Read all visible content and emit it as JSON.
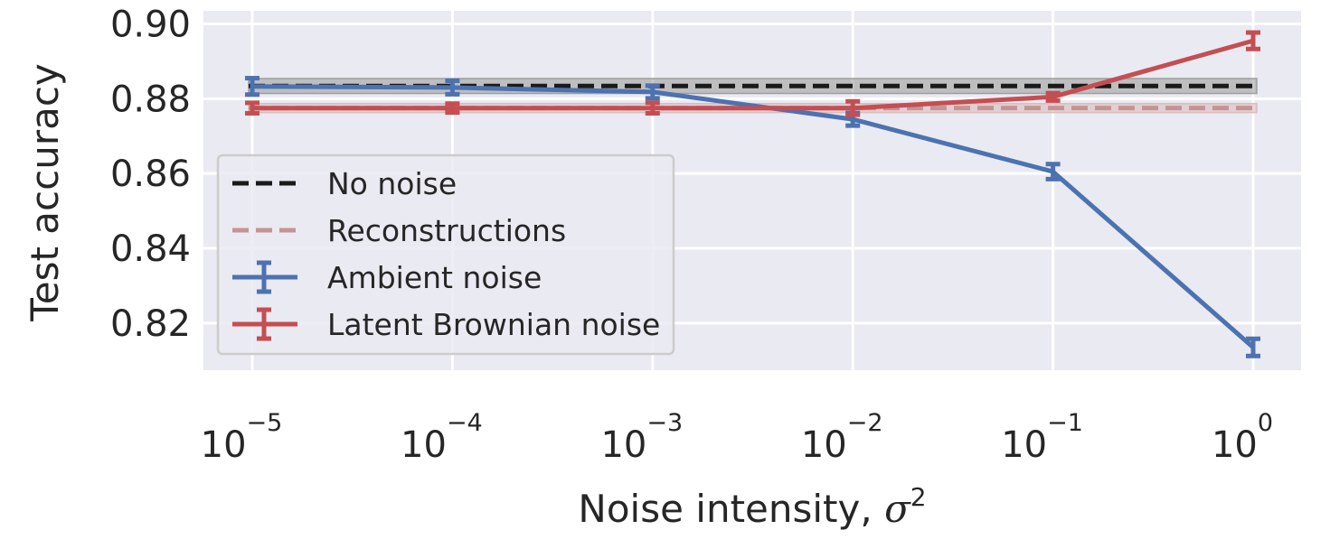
{
  "chart_data": {
    "type": "line",
    "xscale": "log",
    "x": [
      1e-05,
      0.0001,
      0.001,
      0.01,
      0.1,
      1
    ],
    "x_tick_labels": [
      {
        "base": "10",
        "exp": "−5"
      },
      {
        "base": "10",
        "exp": "−4"
      },
      {
        "base": "10",
        "exp": "−3"
      },
      {
        "base": "10",
        "exp": "−2"
      },
      {
        "base": "10",
        "exp": "−1"
      },
      {
        "base": "10",
        "exp": "0"
      }
    ],
    "ylim": [
      0.8074,
      0.9035
    ],
    "y_ticks": [
      0.82,
      0.84,
      0.86,
      0.88,
      0.9
    ],
    "y_tick_labels": [
      "0.82",
      "0.84",
      "0.86",
      "0.88",
      "0.90"
    ],
    "xlabel": {
      "text": "Noise intensity, ",
      "symbol": "σ",
      "sup": "2"
    },
    "ylabel": "Test accuracy",
    "grid": true,
    "legend_position": "center-left",
    "series": [
      {
        "name": "No noise",
        "kind": "hline",
        "value": 0.8834,
        "band": [
          0.8814,
          0.8854
        ],
        "color": "#1a1a1a",
        "band_color": "#999999",
        "dashed": true
      },
      {
        "name": "Reconstructions",
        "kind": "hline",
        "value": 0.8775,
        "band": [
          0.8763,
          0.8787
        ],
        "color": "#c49494",
        "band_color": "#d9b8b8",
        "dashed": true
      },
      {
        "name": "Ambient noise",
        "kind": "errorbar",
        "color": "#4c72b0",
        "values": [
          0.8833,
          0.883,
          0.8818,
          0.8745,
          0.8605,
          0.8135
        ],
        "errors": [
          0.0022,
          0.0018,
          0.0017,
          0.0017,
          0.002,
          0.0023
        ]
      },
      {
        "name": "Latent Brownian noise",
        "kind": "errorbar",
        "color": "#c44e52",
        "values": [
          0.8775,
          0.8775,
          0.8775,
          0.8775,
          0.8805,
          0.8955
        ],
        "errors": [
          0.0014,
          0.0012,
          0.0014,
          0.0018,
          0.001,
          0.0022
        ]
      }
    ]
  }
}
